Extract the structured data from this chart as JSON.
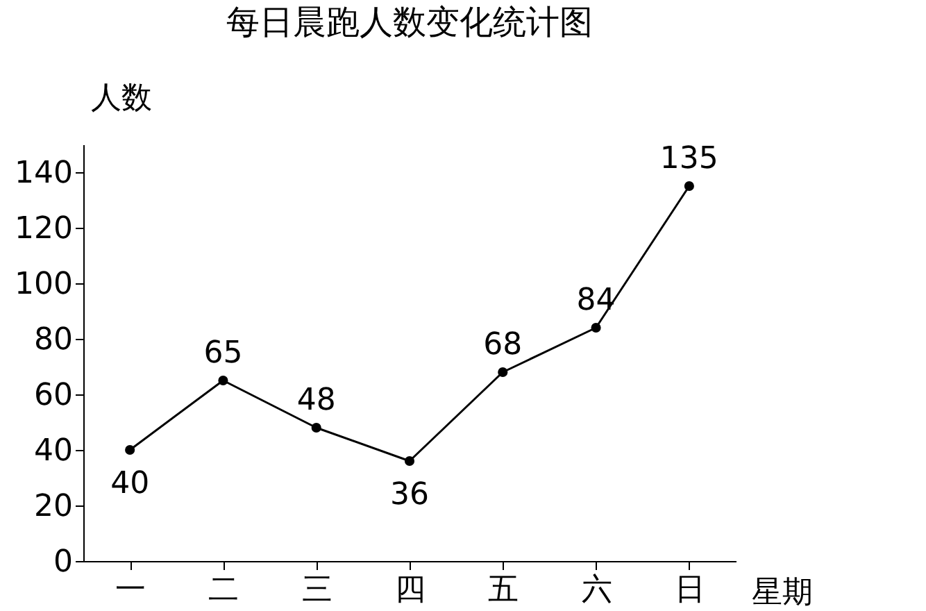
{
  "chart_data": {
    "type": "line",
    "title": "每日晨跑人数变化统计图",
    "xlabel": "星期",
    "ylabel": "人数",
    "categories": [
      "一",
      "二",
      "三",
      "四",
      "五",
      "六",
      "日"
    ],
    "series": [
      {
        "color": "#000000",
        "values": [
          40,
          65,
          48,
          36,
          68,
          84,
          135
        ]
      }
    ],
    "ylim": [
      0,
      150
    ],
    "yticks": [
      0,
      20,
      40,
      60,
      80,
      100,
      120,
      140
    ],
    "data_labels": true,
    "marker": "circle",
    "line_style": "solid",
    "grid": false
  }
}
